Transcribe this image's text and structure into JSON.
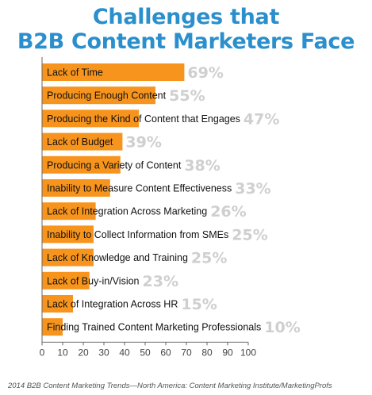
{
  "chart_data": {
    "type": "bar",
    "orientation": "horizontal",
    "title_lines": [
      "Challenges that",
      "B2B Content Marketers Face"
    ],
    "categories": [
      "Lack of Time",
      "Producing Enough Content",
      "Producing the Kind of Content that Engages",
      "Lack of Budget",
      "Producing a Variety of Content",
      "Inability to Measure Content Effectiveness",
      "Lack of Integration Across Marketing",
      "Inability to Collect Information from SMEs",
      "Lack of Knowledge and Training",
      "Lack of Buy-in/Vision",
      "Lack of Integration Across HR",
      "Finding Trained Content Marketing Professionals"
    ],
    "values": [
      69,
      55,
      47,
      39,
      38,
      33,
      26,
      25,
      25,
      23,
      15,
      10
    ],
    "value_labels": [
      "69%",
      "55%",
      "47%",
      "39%",
      "38%",
      "33%",
      "26%",
      "25%",
      "25%",
      "23%",
      "15%",
      "10%"
    ],
    "xlim": [
      0,
      100
    ],
    "xticks": [
      0,
      10,
      20,
      30,
      40,
      50,
      60,
      70,
      80,
      90,
      100
    ],
    "grid": false,
    "legend": "none",
    "source": "2014 B2B Content Marketing Trends—North America: Content Marketing Institute/MarketingProfs",
    "colors": {
      "bar": "#f7941d",
      "value_label": "#cfcfcf",
      "title": "#2a8fcc",
      "axis": "#666666",
      "label": "#111111"
    }
  }
}
